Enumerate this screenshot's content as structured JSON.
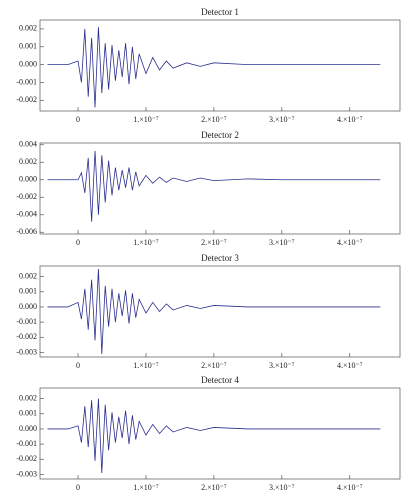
{
  "chart_data": [
    {
      "type": "line",
      "title": "Detector 1",
      "color": "#2b2f8f",
      "x": [
        -4.5e-08,
        -3e-08,
        -1.5e-08,
        0,
        5e-09,
        1e-08,
        1.5e-08,
        2e-08,
        2.5e-08,
        3e-08,
        3.5e-08,
        4e-08,
        4.5e-08,
        5e-08,
        5.5e-08,
        6e-08,
        6.5e-08,
        7e-08,
        7.5e-08,
        8e-08,
        8.5e-08,
        9e-08,
        1e-07,
        1.1e-07,
        1.2e-07,
        1.3e-07,
        1.4e-07,
        1.6e-07,
        1.8e-07,
        2e-07,
        2.5e-07,
        3e-07,
        3.5e-07,
        4e-07,
        4.45e-07
      ],
      "values": [
        0,
        0,
        0,
        0.0002,
        -0.001,
        0.002,
        -0.0018,
        0.0015,
        -0.0024,
        0.0021,
        -0.0016,
        0.0012,
        -0.0014,
        0.0011,
        -0.0009,
        0.0008,
        -0.0007,
        0.0012,
        -0.0011,
        0.001,
        -0.0008,
        0.0006,
        -0.0005,
        0.0004,
        -0.0003,
        0.0002,
        -0.0002,
        0.0001,
        -0.0001,
        0.0001,
        0,
        0,
        0,
        0,
        0
      ],
      "xlim": [
        -5.6e-08,
        4.74e-07
      ],
      "xticks": [
        0,
        {
          "value": 1e-07,
          "label": "1.×10⁻⁷"
        },
        {
          "value": 2e-07,
          "label": "2.×10⁻⁷"
        },
        {
          "value": 3e-07,
          "label": "3.×10⁻⁷"
        },
        {
          "value": 4e-07,
          "label": "4.×10⁻⁷"
        }
      ],
      "ylim": [
        -0.0026,
        0.0025
      ],
      "yticks": [
        {
          "value": -0.002,
          "label": "-0.002"
        },
        {
          "value": -0.001,
          "label": "-0.001"
        },
        {
          "value": 0,
          "label": "0.000"
        },
        0.001,
        0.002
      ]
    },
    {
      "type": "line",
      "title": "Detector 2",
      "color": "#2b2f8f",
      "x": [
        -4.5e-08,
        -3e-08,
        -1.5e-08,
        0,
        5e-09,
        1e-08,
        1.5e-08,
        2e-08,
        2.5e-08,
        3e-08,
        3.5e-08,
        4e-08,
        4.5e-08,
        5e-08,
        5.5e-08,
        6e-08,
        6.5e-08,
        7e-08,
        7.5e-08,
        8e-08,
        8.5e-08,
        9e-08,
        1e-07,
        1.1e-07,
        1.2e-07,
        1.3e-07,
        1.4e-07,
        1.6e-07,
        1.8e-07,
        2e-07,
        2.5e-07,
        3e-07,
        3.5e-07,
        4e-07,
        4.45e-07
      ],
      "values": [
        0,
        0,
        0,
        0,
        0.0008,
        -0.0015,
        0.0025,
        -0.0048,
        0.0033,
        -0.004,
        0.0028,
        -0.0026,
        0.0022,
        -0.0018,
        0.0014,
        -0.0012,
        0.0011,
        -0.0009,
        0.0014,
        -0.0012,
        0.0009,
        -0.0007,
        0.0005,
        -0.0004,
        0.0003,
        -0.0003,
        0.0002,
        -0.0002,
        0.0002,
        -0.0001,
        0.0001,
        0,
        0,
        0,
        0
      ],
      "xlim": [
        -5.6e-08,
        4.74e-07
      ],
      "xticks": [
        0,
        {
          "value": 1e-07,
          "label": "1.×10⁻⁷"
        },
        {
          "value": 2e-07,
          "label": "2.×10⁻⁷"
        },
        {
          "value": 3e-07,
          "label": "3.×10⁻⁷"
        },
        {
          "value": 4e-07,
          "label": "4.×10⁻⁷"
        }
      ],
      "ylim": [
        -0.0062,
        0.0042
      ],
      "yticks": [
        {
          "value": -0.006,
          "label": "-0.006"
        },
        {
          "value": -0.004,
          "label": "-0.004"
        },
        {
          "value": -0.002,
          "label": "-0.002"
        },
        {
          "value": 0,
          "label": "0.000"
        },
        0.002,
        0.004
      ]
    },
    {
      "type": "line",
      "title": "Detector 3",
      "color": "#2b2f8f",
      "x": [
        -4.5e-08,
        -3e-08,
        -1.5e-08,
        0,
        5e-09,
        1e-08,
        1.5e-08,
        2e-08,
        2.5e-08,
        3e-08,
        3.5e-08,
        4e-08,
        4.5e-08,
        5e-08,
        5.5e-08,
        6e-08,
        6.5e-08,
        7e-08,
        7.5e-08,
        8e-08,
        8.5e-08,
        9e-08,
        1e-07,
        1.1e-07,
        1.2e-07,
        1.3e-07,
        1.4e-07,
        1.6e-07,
        1.8e-07,
        2e-07,
        2.5e-07,
        3e-07,
        3.5e-07,
        4e-07,
        4.45e-07
      ],
      "values": [
        0,
        0,
        0,
        0.0003,
        -0.0008,
        0.0012,
        -0.0015,
        0.0018,
        -0.0022,
        0.0025,
        -0.0031,
        0.0014,
        -0.0013,
        0.0012,
        -0.001,
        0.0009,
        -0.0006,
        0.0011,
        -0.0011,
        0.0009,
        -0.0007,
        0.0005,
        -0.0004,
        0.0003,
        -0.0003,
        0.0002,
        -0.0002,
        0.0001,
        -0.0001,
        0.0001,
        0,
        0,
        0,
        0,
        0
      ],
      "xlim": [
        -5.6e-08,
        4.74e-07
      ],
      "xticks": [
        0,
        {
          "value": 1e-07,
          "label": "1.×10⁻⁷"
        },
        {
          "value": 2e-07,
          "label": "2.×10⁻⁷"
        },
        {
          "value": 3e-07,
          "label": "3.×10⁻⁷"
        },
        {
          "value": 4e-07,
          "label": "4.×10⁻⁷"
        }
      ],
      "ylim": [
        -0.0033,
        0.0027
      ],
      "yticks": [
        {
          "value": -0.003,
          "label": "-0.003"
        },
        {
          "value": -0.002,
          "label": "-0.002"
        },
        {
          "value": -0.001,
          "label": "-0.001"
        },
        {
          "value": 0,
          "label": "0.000"
        },
        0.001,
        0.002
      ]
    },
    {
      "type": "line",
      "title": "Detector 4",
      "color": "#2b2f8f",
      "x": [
        -4.5e-08,
        -3e-08,
        -1.5e-08,
        0,
        5e-09,
        1e-08,
        1.5e-08,
        2e-08,
        2.5e-08,
        3e-08,
        3.5e-08,
        4e-08,
        4.5e-08,
        5e-08,
        5.5e-08,
        6e-08,
        6.5e-08,
        7e-08,
        7.5e-08,
        8e-08,
        8.5e-08,
        9e-08,
        1e-07,
        1.1e-07,
        1.2e-07,
        1.3e-07,
        1.4e-07,
        1.6e-07,
        1.8e-07,
        2e-07,
        2.5e-07,
        3e-07,
        3.5e-07,
        4e-07,
        4.45e-07
      ],
      "values": [
        0,
        0,
        0,
        0.0002,
        -0.0009,
        0.0015,
        -0.0012,
        0.0019,
        -0.0021,
        0.002,
        -0.0029,
        0.0016,
        -0.0014,
        0.0011,
        -0.0009,
        0.0008,
        -0.0006,
        0.0012,
        -0.001,
        0.0009,
        -0.0007,
        0.0005,
        -0.0004,
        0.0003,
        -0.0003,
        0.0002,
        -0.0002,
        0.0001,
        -0.0001,
        0.0001,
        0,
        0,
        0,
        0,
        0
      ],
      "xlim": [
        -5.6e-08,
        4.74e-07
      ],
      "xticks": [
        0,
        {
          "value": 1e-07,
          "label": "1.×10⁻⁷"
        },
        {
          "value": 2e-07,
          "label": "2.×10⁻⁷"
        },
        {
          "value": 3e-07,
          "label": "3.×10⁻⁷"
        },
        {
          "value": 4e-07,
          "label": "4.×10⁻⁷"
        }
      ],
      "ylim": [
        -0.0033,
        0.0027
      ],
      "yticks": [
        {
          "value": -0.003,
          "label": "-0.003"
        },
        {
          "value": -0.002,
          "label": "-0.002"
        },
        {
          "value": -0.001,
          "label": "-0.001"
        },
        {
          "value": 0,
          "label": "0.000"
        },
        0.001,
        0.002
      ]
    }
  ]
}
